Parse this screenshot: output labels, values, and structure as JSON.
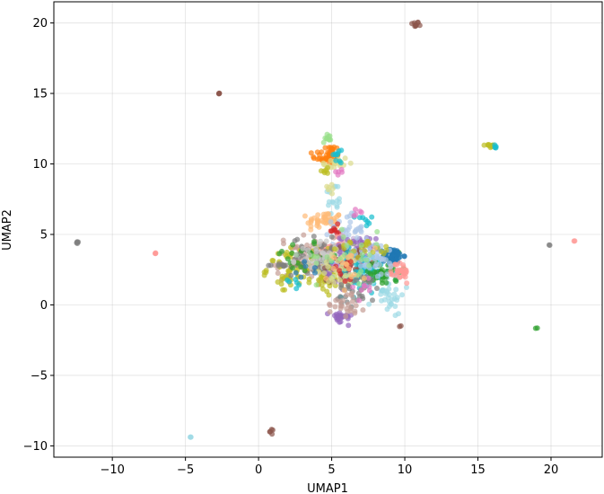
{
  "chart_data": {
    "type": "scatter",
    "title": "",
    "xlabel": "UMAP1",
    "ylabel": "UMAP2",
    "xlim": [
      -14,
      23.5
    ],
    "ylim": [
      -10.8,
      21.5
    ],
    "xticks": [
      -10,
      -5,
      0,
      5,
      10,
      15,
      20
    ],
    "yticks": [
      -10,
      -5,
      0,
      5,
      10,
      15,
      20
    ],
    "tick_labels_x": [
      "−10",
      "−5",
      "0",
      "5",
      "10",
      "15",
      "20"
    ],
    "tick_labels_y": [
      "−10",
      "−5",
      "0",
      "5",
      "10",
      "15",
      "20"
    ],
    "grid": true,
    "legend": "none",
    "point_alpha": 0.7,
    "clusters": [
      {
        "color": "#8c564b",
        "cx": 10.7,
        "cy": 19.9,
        "sx": 0.15,
        "sy": 0.1,
        "n": 10
      },
      {
        "color": "#8c564b",
        "cx": -2.7,
        "cy": 15.0,
        "sx": 0.05,
        "sy": 0.05,
        "n": 4
      },
      {
        "color": "#bcbd22",
        "cx": 15.8,
        "cy": 11.3,
        "sx": 0.2,
        "sy": 0.08,
        "n": 10
      },
      {
        "color": "#17becf",
        "cx": 16.2,
        "cy": 11.2,
        "sx": 0.1,
        "sy": 0.1,
        "n": 5
      },
      {
        "color": "#7f7f7f",
        "cx": -12.4,
        "cy": 4.4,
        "sx": 0.06,
        "sy": 0.06,
        "n": 5
      },
      {
        "color": "#ff9896",
        "cx": -7.0,
        "cy": 3.7,
        "sx": 0.05,
        "sy": 0.05,
        "n": 3
      },
      {
        "color": "#7f7f7f",
        "cx": 19.9,
        "cy": 4.3,
        "sx": 0.04,
        "sy": 0.04,
        "n": 2
      },
      {
        "color": "#ff9896",
        "cx": 21.6,
        "cy": 4.5,
        "sx": 0.04,
        "sy": 0.04,
        "n": 2
      },
      {
        "color": "#2ca02c",
        "cx": 19.0,
        "cy": -1.7,
        "sx": 0.04,
        "sy": 0.04,
        "n": 2
      },
      {
        "color": "#8c564b",
        "cx": 9.7,
        "cy": -1.5,
        "sx": 0.04,
        "sy": 0.04,
        "n": 2
      },
      {
        "color": "#8c564b",
        "cx": 0.9,
        "cy": -9.0,
        "sx": 0.1,
        "sy": 0.1,
        "n": 5
      },
      {
        "color": "#9edae5",
        "cx": -4.6,
        "cy": -9.4,
        "sx": 0.05,
        "sy": 0.05,
        "n": 3
      },
      {
        "color": "#ff7f0e",
        "cx": 4.7,
        "cy": 10.5,
        "sx": 0.5,
        "sy": 0.25,
        "n": 40
      },
      {
        "color": "#ff7f0e",
        "cx": 5.0,
        "cy": 11.1,
        "sx": 0.2,
        "sy": 0.1,
        "n": 10
      },
      {
        "color": "#98df8a",
        "cx": 4.7,
        "cy": 11.8,
        "sx": 0.2,
        "sy": 0.2,
        "n": 10
      },
      {
        "color": "#dbdb8d",
        "cx": 5.2,
        "cy": 10.0,
        "sx": 0.5,
        "sy": 0.3,
        "n": 20
      },
      {
        "color": "#17becf",
        "cx": 5.4,
        "cy": 10.6,
        "sx": 0.3,
        "sy": 0.3,
        "n": 10
      },
      {
        "color": "#e377c2",
        "cx": 5.6,
        "cy": 9.4,
        "sx": 0.15,
        "sy": 0.15,
        "n": 5
      },
      {
        "color": "#bcbd22",
        "cx": 4.6,
        "cy": 9.6,
        "sx": 0.2,
        "sy": 0.2,
        "n": 6
      },
      {
        "color": "#9edae5",
        "cx": 5.1,
        "cy": 7.4,
        "sx": 0.3,
        "sy": 0.7,
        "n": 15
      },
      {
        "color": "#dbdb8d",
        "cx": 5.0,
        "cy": 8.3,
        "sx": 0.2,
        "sy": 0.3,
        "n": 6
      },
      {
        "color": "#ffbb78",
        "cx": 4.5,
        "cy": 6.0,
        "sx": 0.6,
        "sy": 0.3,
        "n": 40
      },
      {
        "color": "#aec7e8",
        "cx": 6.0,
        "cy": 5.4,
        "sx": 0.6,
        "sy": 0.5,
        "n": 30
      },
      {
        "color": "#17becf",
        "cx": 7.2,
        "cy": 6.0,
        "sx": 0.3,
        "sy": 0.2,
        "n": 8
      },
      {
        "color": "#e377c2",
        "cx": 6.6,
        "cy": 6.6,
        "sx": 0.2,
        "sy": 0.2,
        "n": 5
      },
      {
        "color": "#d62728",
        "cx": 5.2,
        "cy": 5.3,
        "sx": 0.15,
        "sy": 0.2,
        "n": 8
      },
      {
        "color": "#ff9896",
        "cx": 5.5,
        "cy": 4.1,
        "sx": 0.6,
        "sy": 0.4,
        "n": 40
      },
      {
        "color": "#c5b0d5",
        "cx": 6.2,
        "cy": 4.0,
        "sx": 0.5,
        "sy": 0.5,
        "n": 25
      },
      {
        "color": "#c49c94",
        "cx": 3.2,
        "cy": 3.2,
        "sx": 1.0,
        "sy": 0.8,
        "n": 70
      },
      {
        "color": "#bcbd22",
        "cx": 2.6,
        "cy": 2.6,
        "sx": 1.0,
        "sy": 0.7,
        "n": 70
      },
      {
        "color": "#bcbd22",
        "cx": 4.8,
        "cy": 1.8,
        "sx": 0.5,
        "sy": 0.5,
        "n": 40
      },
      {
        "color": "#7f7f7f",
        "cx": 4.3,
        "cy": 3.4,
        "sx": 1.0,
        "sy": 0.7,
        "n": 60
      },
      {
        "color": "#7f7f7f",
        "cx": 1.3,
        "cy": 2.8,
        "sx": 0.4,
        "sy": 0.05,
        "n": 10
      },
      {
        "color": "#2ca02c",
        "cx": 3.0,
        "cy": 3.6,
        "sx": 1.0,
        "sy": 0.6,
        "n": 20
      },
      {
        "color": "#c7c7c7",
        "cx": 4.6,
        "cy": 3.6,
        "sx": 1.0,
        "sy": 0.6,
        "n": 40
      },
      {
        "color": "#9467bd",
        "cx": 6.8,
        "cy": 3.9,
        "sx": 0.6,
        "sy": 0.5,
        "n": 35
      },
      {
        "color": "#9467bd",
        "cx": 5.6,
        "cy": -0.9,
        "sx": 0.4,
        "sy": 0.25,
        "n": 25
      },
      {
        "color": "#9467bd",
        "cx": 5.4,
        "cy": 2.0,
        "sx": 0.7,
        "sy": 0.6,
        "n": 20
      },
      {
        "color": "#8c564b",
        "cx": 6.5,
        "cy": 2.9,
        "sx": 0.9,
        "sy": 0.6,
        "n": 50
      },
      {
        "color": "#17becf",
        "cx": 7.2,
        "cy": 2.3,
        "sx": 1.0,
        "sy": 0.8,
        "n": 70
      },
      {
        "color": "#9edae5",
        "cx": 8.8,
        "cy": 0.8,
        "sx": 0.6,
        "sy": 0.7,
        "n": 35
      },
      {
        "color": "#2ca02c",
        "cx": 8.6,
        "cy": 2.4,
        "sx": 0.6,
        "sy": 0.6,
        "n": 35
      },
      {
        "color": "#1f77b4",
        "cx": 9.2,
        "cy": 3.5,
        "sx": 0.35,
        "sy": 0.25,
        "n": 60
      },
      {
        "color": "#ff9896",
        "cx": 9.7,
        "cy": 2.3,
        "sx": 0.3,
        "sy": 0.4,
        "n": 35
      },
      {
        "color": "#aec7e8",
        "cx": 7.8,
        "cy": 3.3,
        "sx": 0.9,
        "sy": 0.7,
        "n": 40
      },
      {
        "color": "#dbdb8d",
        "cx": 5.8,
        "cy": 2.5,
        "sx": 0.8,
        "sy": 0.7,
        "n": 40
      },
      {
        "color": "#bcbd22",
        "cx": 7.4,
        "cy": 4.0,
        "sx": 1.0,
        "sy": 0.3,
        "n": 20
      },
      {
        "color": "#7f7f7f",
        "cx": 6.8,
        "cy": 1.0,
        "sx": 0.8,
        "sy": 0.6,
        "n": 30
      },
      {
        "color": "#c49c94",
        "cx": 6.0,
        "cy": 0.2,
        "sx": 0.7,
        "sy": 0.5,
        "n": 25
      },
      {
        "color": "#98df8a",
        "cx": 6.4,
        "cy": 3.4,
        "sx": 1.2,
        "sy": 0.9,
        "n": 25
      },
      {
        "color": "#d62728",
        "cx": 5.7,
        "cy": 2.6,
        "sx": 0.6,
        "sy": 0.5,
        "n": 10
      },
      {
        "color": "#17becf",
        "cx": 2.5,
        "cy": 1.6,
        "sx": 0.3,
        "sy": 0.2,
        "n": 6
      },
      {
        "color": "#e377c2",
        "cx": 7.3,
        "cy": 1.3,
        "sx": 0.5,
        "sy": 0.5,
        "n": 8
      },
      {
        "color": "#ffbb78",
        "cx": 6.0,
        "cy": 2.8,
        "sx": 1.0,
        "sy": 0.8,
        "n": 15
      },
      {
        "color": "#1f77b4",
        "cx": 3.2,
        "cy": 2.4,
        "sx": 0.4,
        "sy": 0.4,
        "n": 6
      }
    ]
  }
}
